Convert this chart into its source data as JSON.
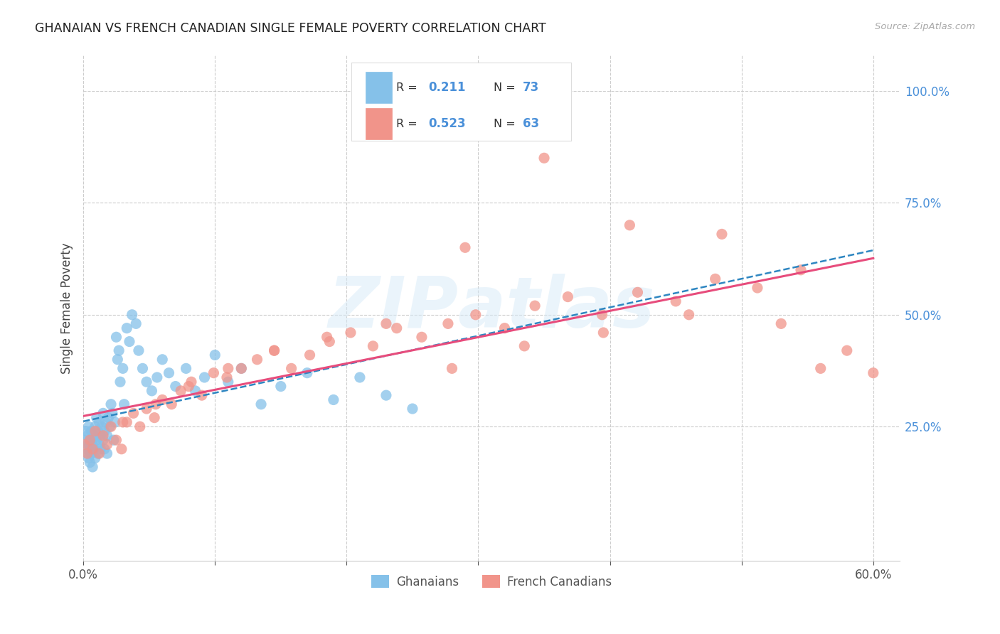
{
  "title": "GHANAIAN VS FRENCH CANADIAN SINGLE FEMALE POVERTY CORRELATION CHART",
  "source": "Source: ZipAtlas.com",
  "ylabel": "Single Female Poverty",
  "xlim": [
    0.0,
    0.62
  ],
  "ylim": [
    -0.05,
    1.08
  ],
  "xtick_positions": [
    0.0,
    0.1,
    0.2,
    0.3,
    0.4,
    0.5,
    0.6
  ],
  "xticklabels": [
    "0.0%",
    "",
    "",
    "",
    "",
    "",
    "60.0%"
  ],
  "yticks_right": [
    0.25,
    0.5,
    0.75,
    1.0
  ],
  "ytick_labels_right": [
    "25.0%",
    "50.0%",
    "75.0%",
    "100.0%"
  ],
  "ghanaian_color": "#85C1E9",
  "french_color": "#F1948A",
  "trend_ghanaian_color": "#2E86C1",
  "trend_french_color": "#E74C7C",
  "legend_label_ghanaians": "Ghanaians",
  "legend_label_french": "French Canadians",
  "watermark": "ZIPAtlas",
  "background_color": "#FFFFFF",
  "grid_color": "#CCCCCC",
  "ghanaian_x": [
    0.001,
    0.002,
    0.002,
    0.003,
    0.003,
    0.004,
    0.004,
    0.004,
    0.005,
    0.005,
    0.005,
    0.006,
    0.006,
    0.007,
    0.007,
    0.007,
    0.008,
    0.008,
    0.009,
    0.009,
    0.01,
    0.01,
    0.011,
    0.011,
    0.012,
    0.012,
    0.013,
    0.013,
    0.014,
    0.015,
    0.015,
    0.016,
    0.016,
    0.017,
    0.018,
    0.018,
    0.019,
    0.02,
    0.021,
    0.022,
    0.023,
    0.024,
    0.025,
    0.026,
    0.027,
    0.028,
    0.03,
    0.031,
    0.033,
    0.035,
    0.037,
    0.04,
    0.042,
    0.045,
    0.048,
    0.052,
    0.056,
    0.06,
    0.065,
    0.07,
    0.078,
    0.085,
    0.092,
    0.1,
    0.11,
    0.12,
    0.135,
    0.15,
    0.17,
    0.19,
    0.21,
    0.23,
    0.25
  ],
  "ghanaian_y": [
    0.22,
    0.2,
    0.24,
    0.19,
    0.23,
    0.21,
    0.25,
    0.18,
    0.22,
    0.2,
    0.17,
    0.24,
    0.19,
    0.22,
    0.21,
    0.16,
    0.23,
    0.2,
    0.25,
    0.18,
    0.22,
    0.27,
    0.19,
    0.24,
    0.21,
    0.26,
    0.2,
    0.23,
    0.25,
    0.22,
    0.28,
    0.24,
    0.2,
    0.26,
    0.23,
    0.19,
    0.27,
    0.25,
    0.3,
    0.28,
    0.22,
    0.26,
    0.45,
    0.4,
    0.42,
    0.35,
    0.38,
    0.3,
    0.47,
    0.44,
    0.5,
    0.48,
    0.42,
    0.38,
    0.35,
    0.33,
    0.36,
    0.4,
    0.37,
    0.34,
    0.38,
    0.33,
    0.36,
    0.41,
    0.35,
    0.38,
    0.3,
    0.34,
    0.37,
    0.31,
    0.36,
    0.32,
    0.29
  ],
  "french_x": [
    0.001,
    0.003,
    0.005,
    0.007,
    0.009,
    0.012,
    0.015,
    0.018,
    0.021,
    0.025,
    0.029,
    0.033,
    0.038,
    0.043,
    0.048,
    0.054,
    0.06,
    0.067,
    0.074,
    0.082,
    0.09,
    0.099,
    0.109,
    0.12,
    0.132,
    0.145,
    0.158,
    0.172,
    0.187,
    0.203,
    0.22,
    0.238,
    0.257,
    0.277,
    0.298,
    0.32,
    0.343,
    0.368,
    0.394,
    0.421,
    0.45,
    0.48,
    0.512,
    0.545,
    0.03,
    0.055,
    0.08,
    0.11,
    0.145,
    0.185,
    0.23,
    0.28,
    0.335,
    0.395,
    0.46,
    0.53,
    0.29,
    0.35,
    0.415,
    0.485,
    0.56,
    0.58,
    0.6
  ],
  "french_y": [
    0.21,
    0.19,
    0.22,
    0.2,
    0.24,
    0.19,
    0.23,
    0.21,
    0.25,
    0.22,
    0.2,
    0.26,
    0.28,
    0.25,
    0.29,
    0.27,
    0.31,
    0.3,
    0.33,
    0.35,
    0.32,
    0.37,
    0.36,
    0.38,
    0.4,
    0.42,
    0.38,
    0.41,
    0.44,
    0.46,
    0.43,
    0.47,
    0.45,
    0.48,
    0.5,
    0.47,
    0.52,
    0.54,
    0.5,
    0.55,
    0.53,
    0.58,
    0.56,
    0.6,
    0.26,
    0.3,
    0.34,
    0.38,
    0.42,
    0.45,
    0.48,
    0.38,
    0.43,
    0.46,
    0.5,
    0.48,
    0.65,
    0.85,
    0.7,
    0.68,
    0.38,
    0.42,
    0.37
  ]
}
